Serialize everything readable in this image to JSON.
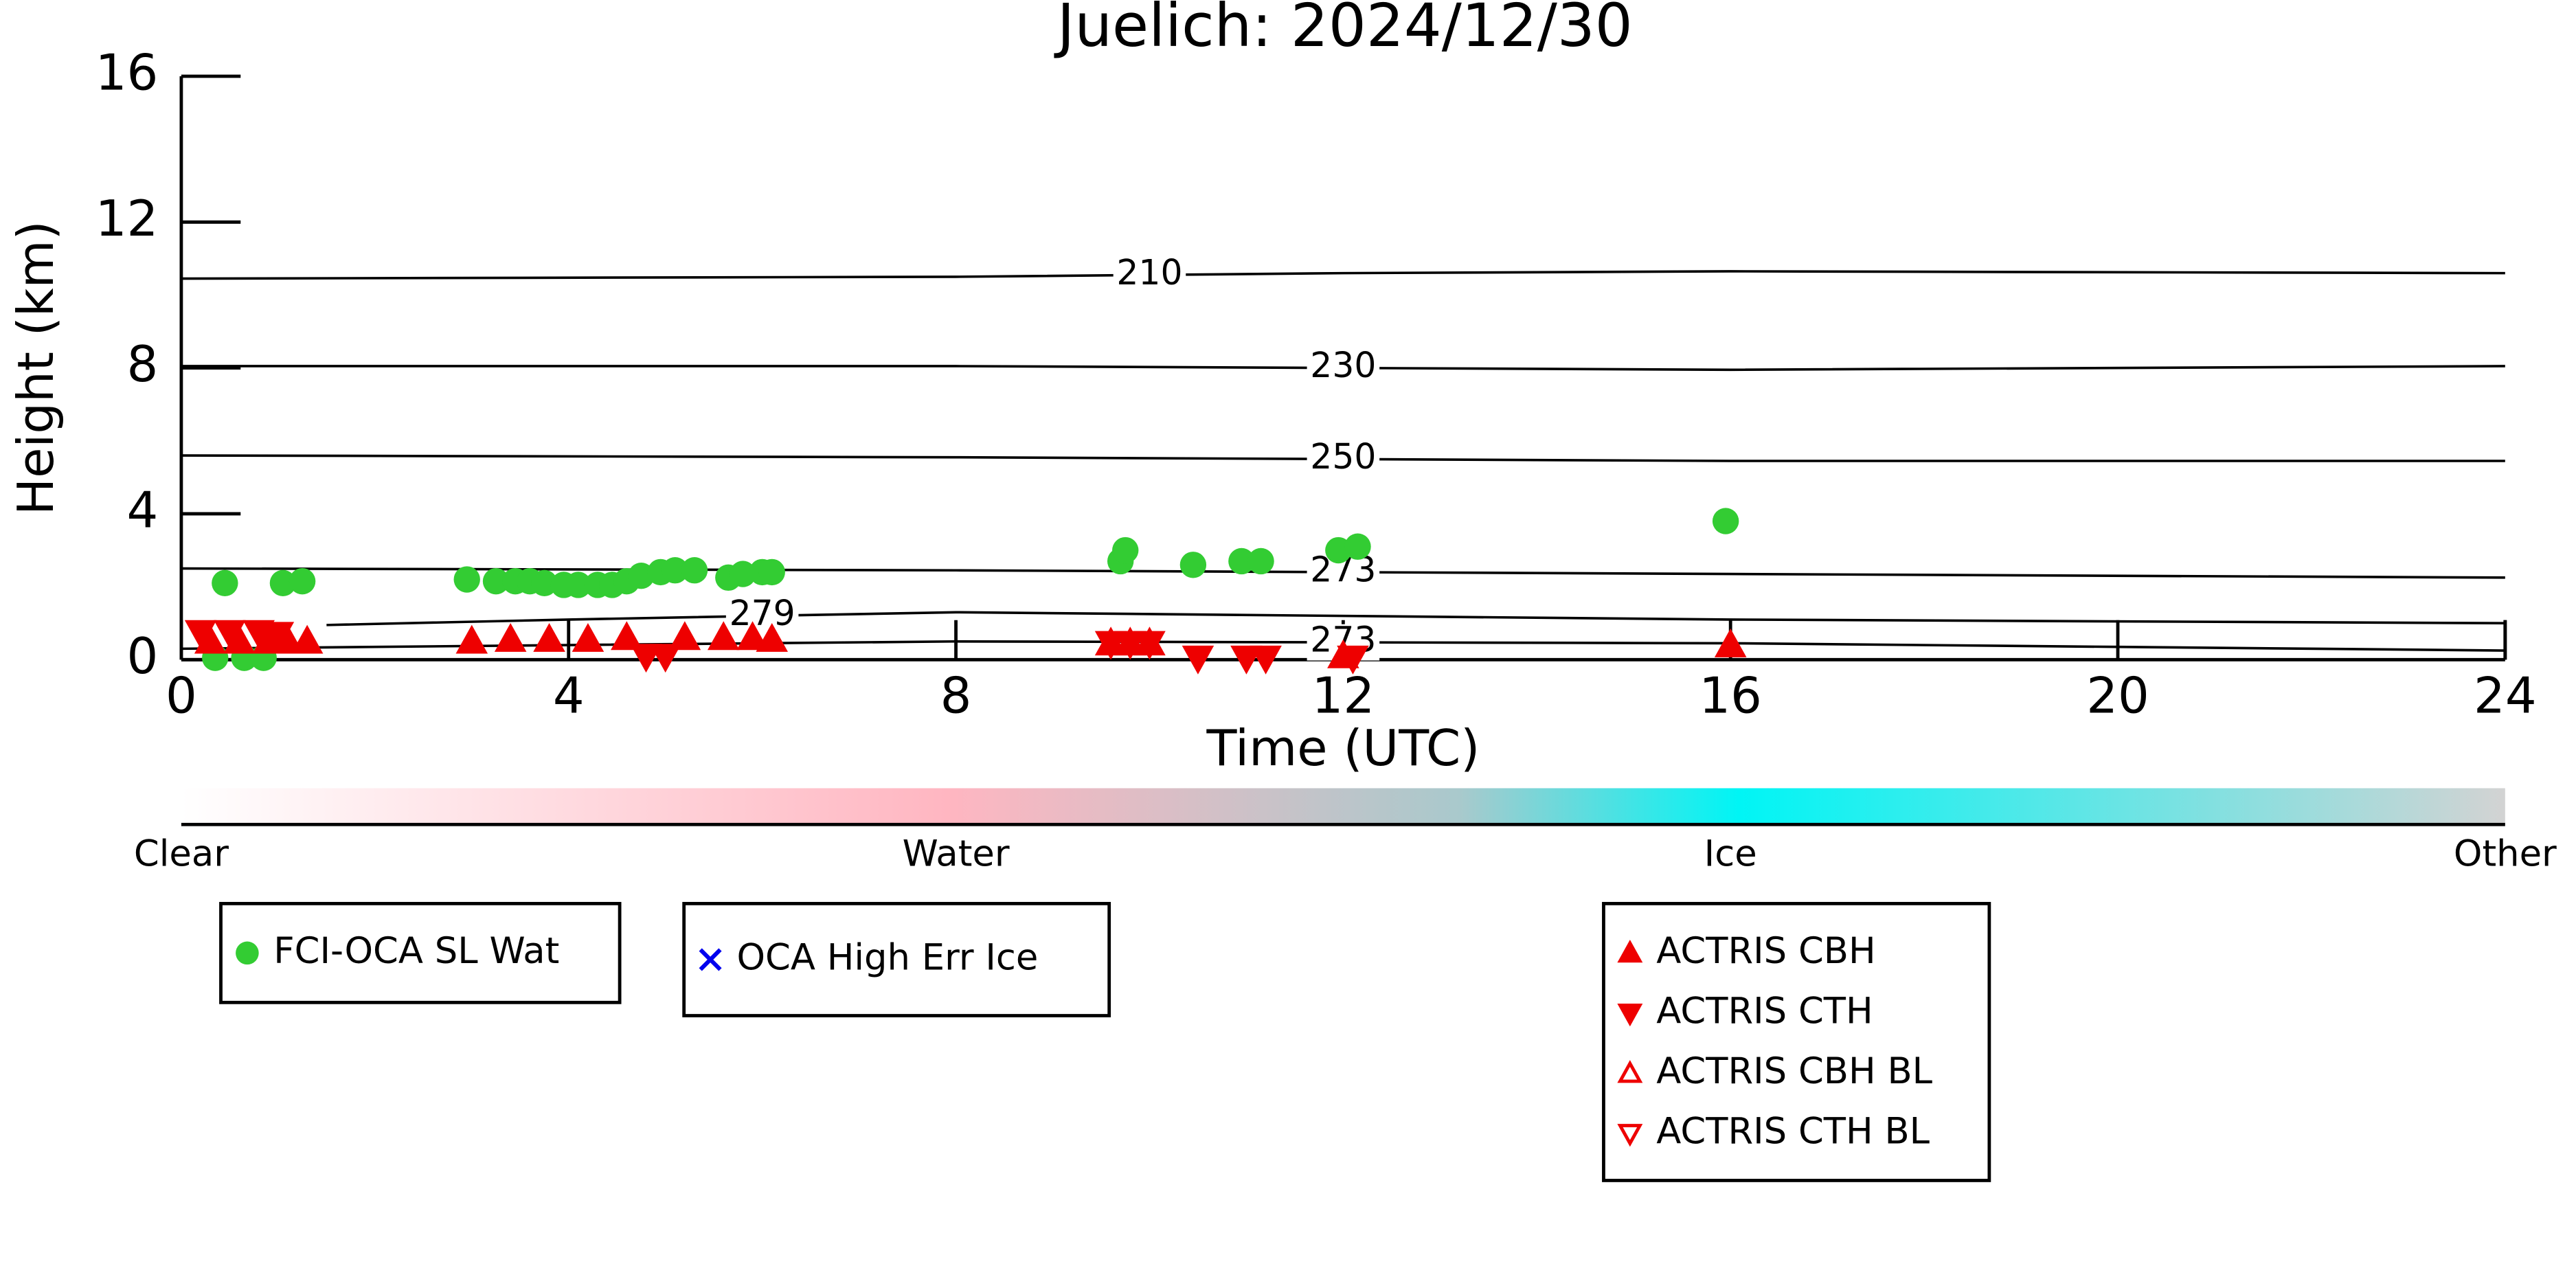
{
  "chart_data": {
    "type": "scatter",
    "title": "Juelich: 2024/12/30",
    "xlabel": "Time (UTC)",
    "ylabel": "Height (km)",
    "xlim": [
      0,
      24
    ],
    "ylim": [
      0,
      16
    ],
    "xticks": [
      0,
      4,
      8,
      12,
      16,
      20,
      24
    ],
    "yticks": [
      0,
      4,
      8,
      12,
      16
    ],
    "series": [
      {
        "name": "FCI-OCA SL Wat",
        "color": "#33cc33",
        "marker": "circle",
        "x": [
          0.35,
          0.65,
          0.85,
          0.45,
          1.05,
          1.25,
          2.95,
          3.25,
          3.45,
          3.6,
          3.75,
          3.95,
          4.1,
          4.3,
          4.45,
          4.6,
          4.75,
          4.95,
          5.1,
          5.3,
          5.65,
          5.8,
          6.0,
          6.1,
          9.7,
          9.75,
          10.45,
          10.95,
          11.15,
          11.95,
          12.15,
          15.95
        ],
        "y": [
          0.05,
          0.05,
          0.05,
          2.1,
          2.1,
          2.15,
          2.2,
          2.15,
          2.15,
          2.15,
          2.1,
          2.05,
          2.05,
          2.05,
          2.05,
          2.15,
          2.3,
          2.4,
          2.45,
          2.45,
          2.25,
          2.35,
          2.4,
          2.4,
          2.7,
          3.0,
          2.6,
          2.7,
          2.7,
          3.0,
          3.1,
          3.8
        ]
      },
      {
        "name": "OCA High Err Ice",
        "color": "#0000ee",
        "marker": "x",
        "x": [],
        "y": []
      },
      {
        "name": "ACTRIS CBH",
        "color": "#ee0000",
        "marker": "triangle-up",
        "x": [
          0.3,
          0.6,
          0.9,
          1.1,
          1.3,
          3.0,
          3.4,
          3.8,
          4.2,
          4.6,
          5.2,
          5.6,
          5.9,
          6.1,
          9.6,
          9.8,
          10.0,
          12.0,
          16.0
        ],
        "y": [
          0.5,
          0.5,
          0.5,
          0.5,
          0.5,
          0.5,
          0.55,
          0.55,
          0.55,
          0.6,
          0.6,
          0.6,
          0.6,
          0.55,
          0.45,
          0.45,
          0.45,
          0.1,
          0.4
        ]
      },
      {
        "name": "ACTRIS CTH",
        "color": "#ee0000",
        "marker": "triangle-down",
        "x": [
          0.2,
          0.5,
          0.8,
          1.0,
          4.8,
          5.0,
          9.6,
          9.8,
          10.0,
          10.5,
          11.0,
          11.2,
          12.1
        ],
        "y": [
          0.75,
          0.75,
          0.75,
          0.7,
          0.1,
          0.1,
          0.45,
          0.45,
          0.45,
          0.05,
          0.05,
          0.05,
          0.05
        ]
      },
      {
        "name": "ACTRIS CBH BL",
        "color": "#ee0000",
        "marker": "triangle-up-open",
        "x": [],
        "y": []
      },
      {
        "name": "ACTRIS CTH BL",
        "color": "#ee0000",
        "marker": "triangle-down-open",
        "x": [],
        "y": []
      }
    ],
    "contours": [
      {
        "label": "210",
        "x": [
          0,
          8,
          12,
          16,
          24
        ],
        "y": [
          10.45,
          10.5,
          10.6,
          10.65,
          10.6
        ]
      },
      {
        "label": "230",
        "x": [
          0,
          8,
          16,
          24
        ],
        "y": [
          8.05,
          8.05,
          7.95,
          8.05
        ]
      },
      {
        "label": "250",
        "x": [
          0,
          8,
          16,
          24
        ],
        "y": [
          5.6,
          5.55,
          5.45,
          5.45
        ]
      },
      {
        "label": "273",
        "x": [
          0,
          8,
          16,
          24
        ],
        "y": [
          2.5,
          2.45,
          2.35,
          2.25
        ]
      },
      {
        "label": "279",
        "x": [
          1.5,
          4,
          8,
          16,
          24
        ],
        "y": [
          0.95,
          1.1,
          1.3,
          1.1,
          1.0
        ]
      },
      {
        "label": "273",
        "x": [
          0,
          4,
          8,
          16,
          20,
          24
        ],
        "y": [
          0.3,
          0.4,
          0.5,
          0.45,
          0.35,
          0.25
        ]
      }
    ],
    "colorbar": {
      "labels": [
        "Clear",
        "Water",
        "Ice",
        "Other"
      ]
    }
  }
}
